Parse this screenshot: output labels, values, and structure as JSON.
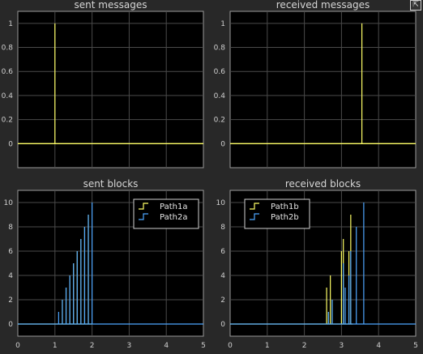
{
  "window": {
    "undock_glyph": "⇱"
  },
  "chart_data": [
    {
      "type": "line",
      "title": "sent messages",
      "xlim": [
        0,
        5
      ],
      "ylim": [
        -0.2,
        1.1
      ],
      "yticks": [
        0,
        0.2,
        0.4,
        0.6,
        0.8,
        1
      ],
      "ytick_labels": [
        "0",
        "0.2",
        "0.4",
        "0.6",
        "0.8",
        "1"
      ],
      "xticks": [
        0,
        1,
        2,
        3,
        4,
        5
      ],
      "xtick_labels": [],
      "grid": true,
      "legend": null,
      "series": [
        {
          "color": "#ffff66",
          "baseline": 0,
          "xmax": 5,
          "stems": [
            {
              "x": 1.0,
              "y": 1
            }
          ]
        }
      ]
    },
    {
      "type": "line",
      "title": "received messages",
      "xlim": [
        0,
        5
      ],
      "ylim": [
        -0.2,
        1.1
      ],
      "yticks": [
        0,
        0.2,
        0.4,
        0.6,
        0.8,
        1
      ],
      "ytick_labels": [
        "0",
        "0.2",
        "0.4",
        "0.6",
        "0.8",
        "1"
      ],
      "xticks": [
        0,
        1,
        2,
        3,
        4,
        5
      ],
      "xtick_labels": [],
      "grid": true,
      "legend": null,
      "series": [
        {
          "color": "#ffff66",
          "baseline": 0,
          "xmax": 5,
          "stems": [
            {
              "x": 3.55,
              "y": 1
            }
          ]
        }
      ]
    },
    {
      "type": "line",
      "title": "sent blocks",
      "xlim": [
        0,
        5
      ],
      "ylim": [
        -1,
        11
      ],
      "yticks": [
        0,
        2,
        4,
        6,
        8,
        10
      ],
      "ytick_labels": [
        "0",
        "2",
        "4",
        "6",
        "8",
        "10"
      ],
      "xticks": [
        0,
        1,
        2,
        3,
        4,
        5
      ],
      "xtick_labels": [
        "0",
        "1",
        "2",
        "3",
        "4",
        "5"
      ],
      "grid": true,
      "legend": "top-right",
      "series": [
        {
          "name": "Path1a",
          "color": "#ffff66",
          "baseline": 0,
          "xmax": 2,
          "stems": [
            {
              "x": 1.2,
              "y": 2
            },
            {
              "x": 1.3,
              "y": 3
            },
            {
              "x": 1.4,
              "y": 4
            },
            {
              "x": 1.5,
              "y": 5
            },
            {
              "x": 1.6,
              "y": 6
            },
            {
              "x": 1.7,
              "y": 7
            },
            {
              "x": 1.8,
              "y": 8
            },
            {
              "x": 1.9,
              "y": 9
            }
          ]
        },
        {
          "name": "Path2a",
          "color": "#4da6ff",
          "baseline": 0,
          "xmax": 5,
          "stems": [
            {
              "x": 1.1,
              "y": 1
            },
            {
              "x": 1.2,
              "y": 2
            },
            {
              "x": 1.3,
              "y": 3
            },
            {
              "x": 1.4,
              "y": 4
            },
            {
              "x": 1.5,
              "y": 5
            },
            {
              "x": 1.6,
              "y": 6
            },
            {
              "x": 1.7,
              "y": 7
            },
            {
              "x": 1.8,
              "y": 8
            },
            {
              "x": 1.9,
              "y": 9
            },
            {
              "x": 2.0,
              "y": 10
            }
          ]
        }
      ]
    },
    {
      "type": "line",
      "title": "received blocks",
      "xlim": [
        0,
        5
      ],
      "ylim": [
        -1,
        11
      ],
      "yticks": [
        0,
        2,
        4,
        6,
        8,
        10
      ],
      "ytick_labels": [
        "0",
        "2",
        "4",
        "6",
        "8",
        "10"
      ],
      "xticks": [
        0,
        1,
        2,
        3,
        4,
        5
      ],
      "xtick_labels": [
        "0",
        "1",
        "2",
        "3",
        "4",
        "5"
      ],
      "grid": true,
      "legend": "top-left",
      "series": [
        {
          "name": "Path1b",
          "color": "#ffff66",
          "baseline": 0,
          "xmax": 3.3,
          "stems": [
            {
              "x": 2.6,
              "y": 3
            },
            {
              "x": 2.65,
              "y": 1
            },
            {
              "x": 2.7,
              "y": 4
            },
            {
              "x": 2.75,
              "y": 2
            },
            {
              "x": 3.0,
              "y": 6
            },
            {
              "x": 3.05,
              "y": 7
            },
            {
              "x": 3.2,
              "y": 6
            },
            {
              "x": 3.25,
              "y": 9
            }
          ]
        },
        {
          "name": "Path2b",
          "color": "#4da6ff",
          "baseline": 0,
          "xmax": 5,
          "stems": [
            {
              "x": 2.65,
              "y": 1
            },
            {
              "x": 2.75,
              "y": 2
            },
            {
              "x": 3.05,
              "y": 5
            },
            {
              "x": 3.1,
              "y": 3
            },
            {
              "x": 3.2,
              "y": 4
            },
            {
              "x": 3.25,
              "y": 6
            },
            {
              "x": 3.4,
              "y": 8
            },
            {
              "x": 3.6,
              "y": 10
            }
          ]
        }
      ]
    }
  ]
}
